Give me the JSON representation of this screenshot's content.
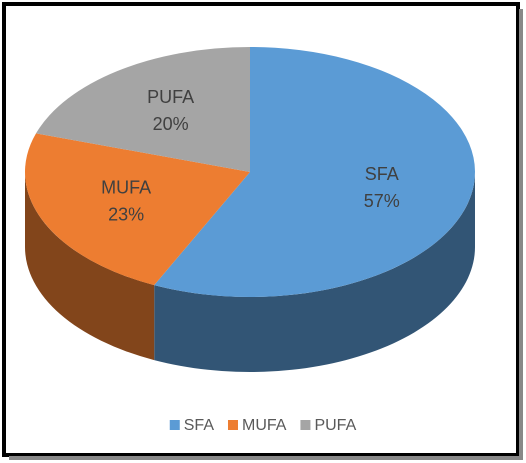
{
  "chart_data": {
    "type": "pie",
    "categories": [
      "SFA",
      "MUFA",
      "PUFA"
    ],
    "values": [
      57,
      23,
      20
    ],
    "value_labels": [
      "57%",
      "23%",
      "20%"
    ],
    "colors": [
      "#5b9bd5",
      "#ed7d31",
      "#a5a5a5"
    ],
    "legend": "bottom"
  }
}
